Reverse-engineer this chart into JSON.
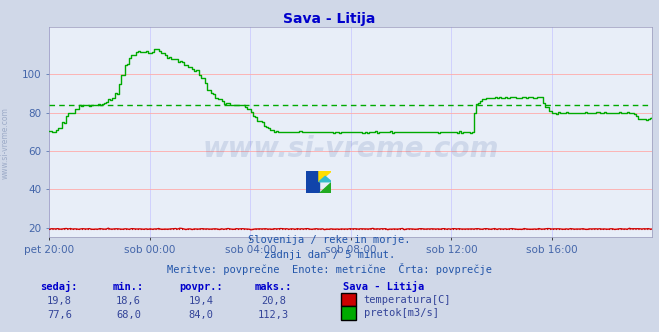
{
  "title": "Sava - Litija",
  "title_color": "#0000cc",
  "bg_color": "#d0d8e8",
  "plot_bg_color": "#e8eef8",
  "grid_color_h": "#ffaaaa",
  "grid_color_v": "#ccccff",
  "tick_color": "#4466aa",
  "text_color": "#2255aa",
  "watermark_text": "www.si-vreme.com",
  "watermark_color": "#1a3a8a",
  "ylim": [
    15,
    125
  ],
  "yticks": [
    20,
    40,
    60,
    80,
    100
  ],
  "x_labels": [
    "pet 20:00",
    "sob 00:00",
    "sob 04:00",
    "sob 08:00",
    "sob 12:00",
    "sob 16:00"
  ],
  "n_points": 288,
  "temp_color": "#cc0000",
  "flow_color": "#00aa00",
  "temp_avg": 19.4,
  "flow_avg": 84.0,
  "temp_min": 18.6,
  "temp_max": 20.8,
  "flow_min": 68.0,
  "flow_max": 112.3,
  "temp_current": 19.8,
  "flow_current": 77.6,
  "subtitle1": "Slovenija / reke in morje.",
  "subtitle2": "zadnji dan / 5 minut.",
  "subtitle3": "Meritve: povprečne  Enote: metrične  Črta: povprečje",
  "label_sedaj": "sedaj:",
  "label_min": "min.:",
  "label_povpr": "povpr.:",
  "label_maks": "maks.:",
  "label_station": "Sava - Litija",
  "label_temp": "temperatura[C]",
  "label_flow": "pretok[m3/s]",
  "flow_steps": [
    70,
    70,
    71,
    72,
    75,
    78,
    80,
    80,
    82,
    84,
    84,
    84,
    84,
    84,
    84,
    84,
    85,
    86,
    87,
    88,
    90,
    95,
    100,
    105,
    108,
    110,
    112,
    112,
    112,
    112,
    111,
    112,
    113,
    112,
    111,
    110,
    109,
    108,
    108,
    107,
    106,
    105,
    104,
    103,
    102,
    100,
    98,
    95,
    92,
    90,
    88,
    87,
    86,
    85,
    85,
    84,
    84,
    84,
    84,
    83,
    82,
    80,
    78,
    76,
    75,
    73,
    72,
    71,
    70,
    70,
    70,
    70,
    70,
    70,
    70,
    70,
    70,
    70,
    70,
    70,
    70,
    70,
    70,
    70,
    70,
    70,
    70,
    70,
    70,
    70,
    70,
    70,
    70,
    70,
    70,
    70,
    70,
    70,
    70,
    70,
    70,
    70,
    70,
    70,
    70,
    70,
    70,
    70,
    70,
    70,
    70,
    70,
    70,
    70,
    70,
    70,
    70,
    70,
    70,
    70,
    70,
    70,
    70,
    70,
    70,
    70,
    70,
    70,
    80,
    85,
    86,
    87,
    88,
    88,
    88,
    88,
    88,
    88,
    88,
    88,
    88,
    88,
    88,
    88,
    88,
    88,
    88,
    88,
    88,
    85,
    83,
    81,
    80,
    80,
    80,
    80,
    80,
    80,
    80,
    80,
    80,
    80,
    80,
    80,
    80,
    80,
    80,
    80,
    80,
    80,
    80,
    80,
    80,
    80,
    80,
    80,
    80,
    78,
    77,
    77,
    76,
    77,
    78
  ]
}
